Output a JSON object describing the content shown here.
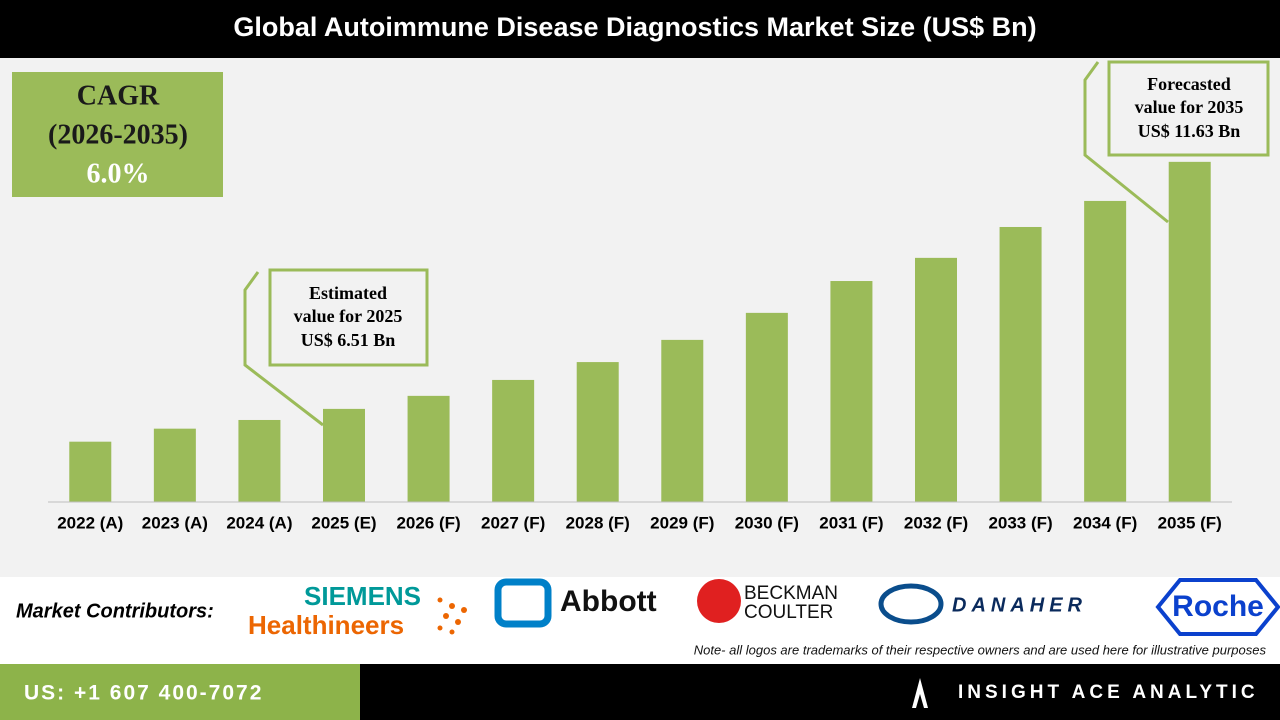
{
  "chart_data": {
    "type": "bar",
    "title": "Global Autoimmune Disease Diagnostics Market Size (US$ Bn)",
    "categories": [
      "2022 (A)",
      "2023 (A)",
      "2024 (A)",
      "2025 (E)",
      "2026 (F)",
      "2027 (F)",
      "2028 (F)",
      "2029 (F)",
      "2030 (F)",
      "2031 (F)",
      "2032 (F)",
      "2033 (F)",
      "2034 (F)",
      "2035 (F)"
    ],
    "values": [
      5.83,
      6.1,
      6.28,
      6.51,
      6.78,
      7.11,
      7.48,
      7.94,
      8.5,
      9.16,
      9.64,
      10.28,
      10.82,
      11.63
    ],
    "color": "#9bbb59",
    "ylim": [
      4.58,
      12.0
    ],
    "annotations": [
      {
        "lines": [
          "Estimated",
          "value for 2025",
          "US$ 6.51 Bn"
        ]
      },
      {
        "lines": [
          "Forecasted",
          "value for 2035",
          "US$ 11.63 Bn"
        ]
      }
    ]
  },
  "cagr": {
    "label": "CAGR",
    "period": "(2026-2035)",
    "value": "6.0%"
  },
  "contributors": {
    "label": "Market Contributors:",
    "logos": [
      "SIEMENS",
      "Healthineers",
      "Abbott",
      "BECKMAN",
      "COULTER",
      "DANAHER",
      "Roche"
    ],
    "note": "Note- all logos are trademarks of their respective owners and are used here for illustrative purposes"
  },
  "footer": {
    "phone": "US: +1 607 400-7072",
    "brand": "INSIGHT ACE ANALYTIC"
  }
}
